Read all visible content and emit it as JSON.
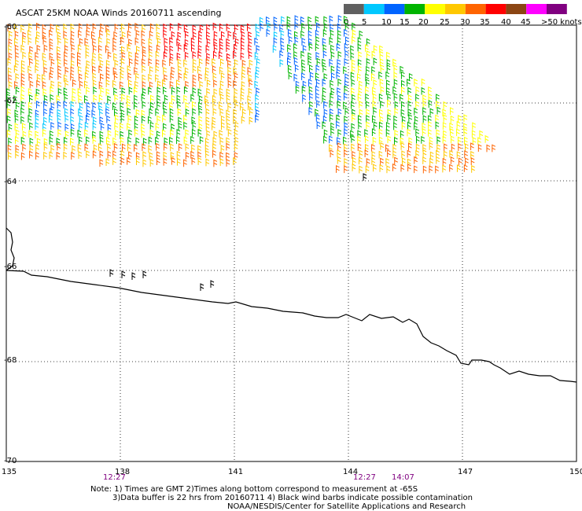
{
  "title": "ASCAT 25KM NOAA Winds 20160711 ascending",
  "legend": {
    "labels": [
      "0",
      "5",
      "10",
      "15",
      "20",
      "25",
      "30",
      "35",
      "40",
      "45",
      ">50 knots"
    ],
    "colors": [
      "#606060",
      "#00c8ff",
      "#0064ff",
      "#00b400",
      "#ffff00",
      "#ffc800",
      "#ff6400",
      "#ff0000",
      "#8b4513",
      "#ff00ff",
      "#800080"
    ]
  },
  "axes": {
    "lon_ticks": [
      "135",
      "138",
      "141",
      "144",
      "147",
      "150"
    ],
    "lat_ticks": [
      "-60",
      "-62",
      "-64",
      "-66",
      "-68",
      "-70"
    ]
  },
  "pass_times": [
    "12:27",
    "12:27",
    "14:07"
  ],
  "notes": {
    "line1": "Note: 1) Times are GMT 2)Times along bottom correspond to measurement at -65S",
    "line2": "3)Data buffer is 22 hrs from 20160711 4) Black wind barbs indicate possible contamination",
    "line3": "NOAA/NESDIS/Center for Satellite Applications and Research"
  }
}
